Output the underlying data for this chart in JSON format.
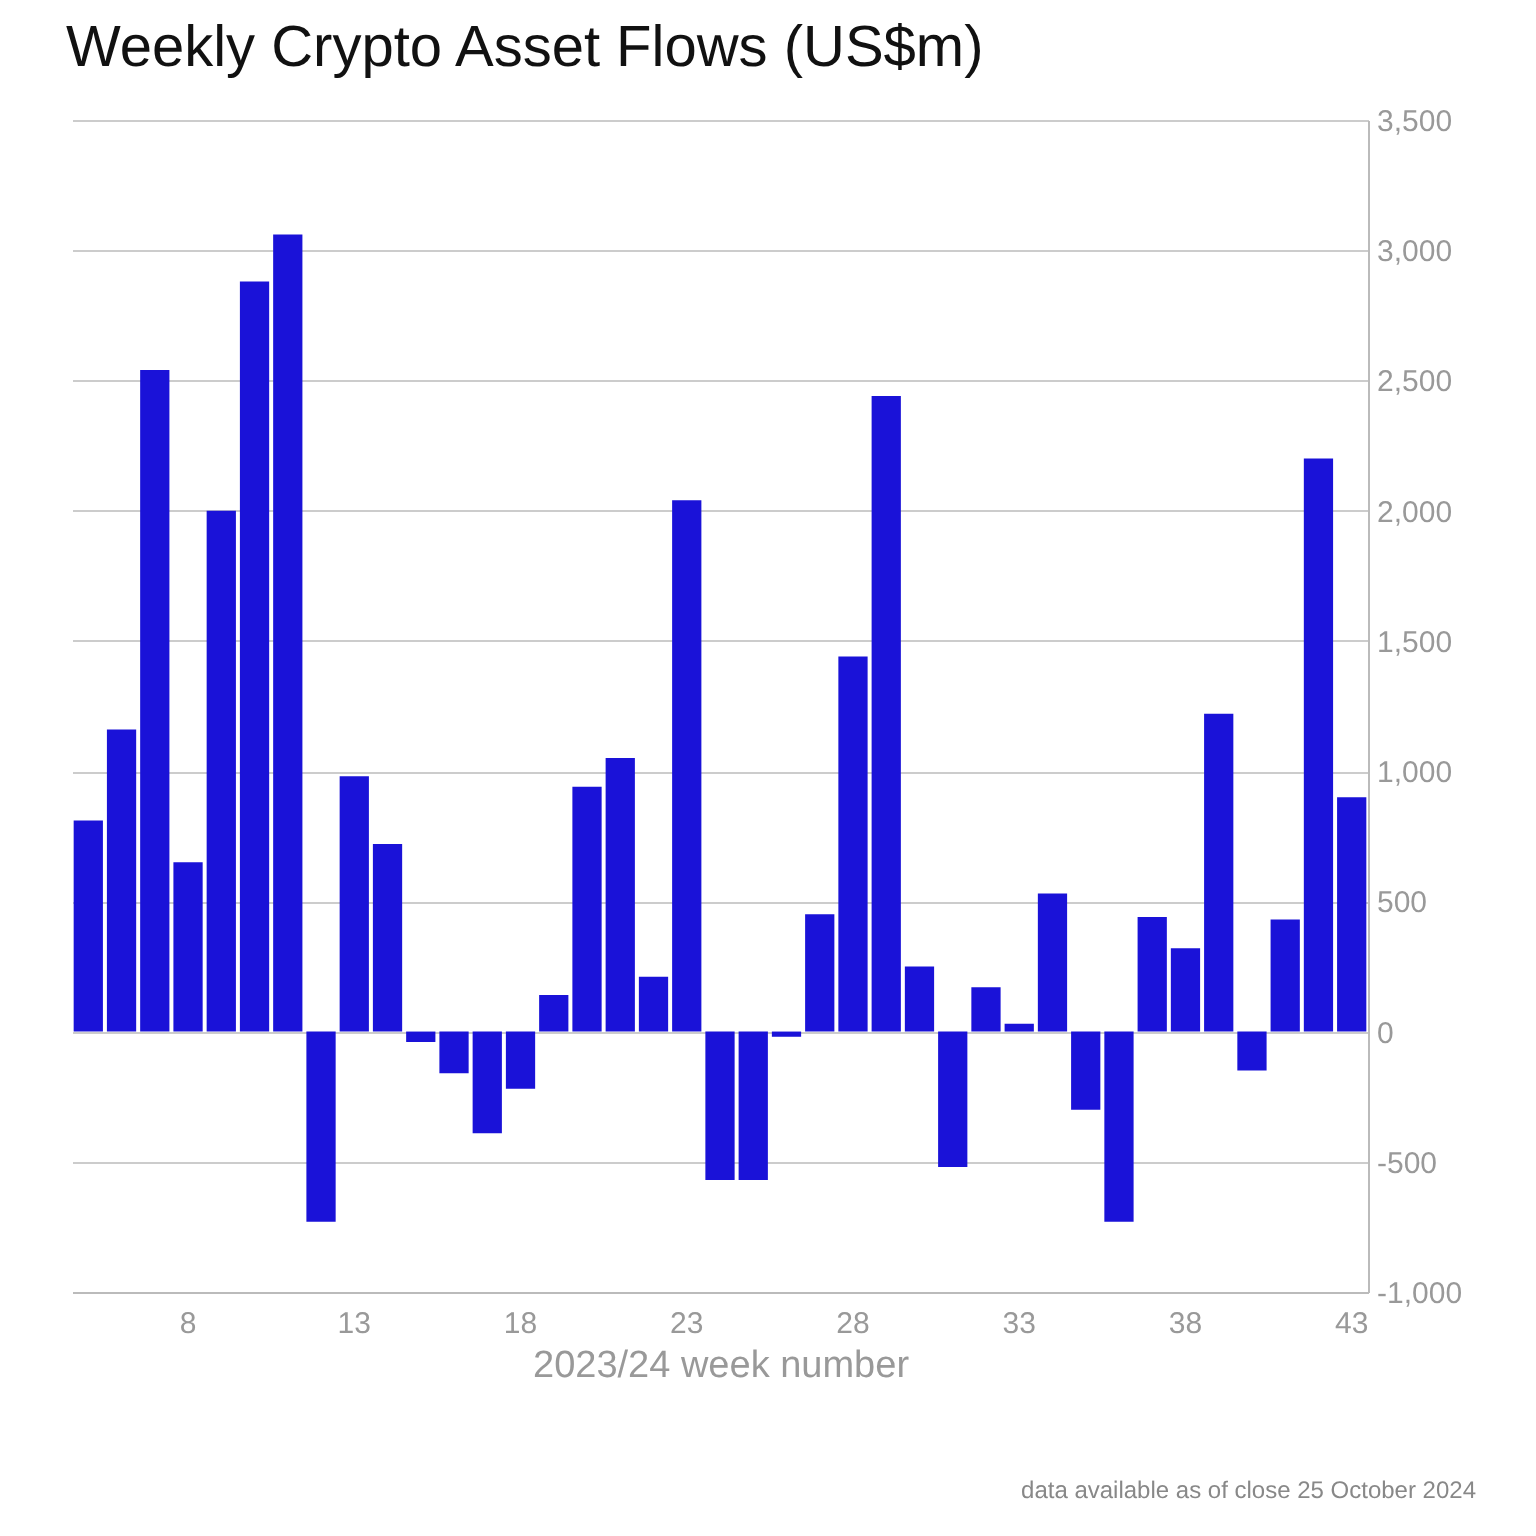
{
  "chart_data": {
    "type": "bar",
    "title": "Weekly Crypto Asset Flows (US$m)",
    "xlabel": "2023/24 week number",
    "annotations": [
      "data available as of close 25 October 2024"
    ],
    "categories": [
      null,
      null,
      null,
      "8",
      null,
      null,
      null,
      null,
      "13",
      null,
      null,
      null,
      null,
      "18",
      null,
      null,
      null,
      null,
      "23",
      null,
      null,
      null,
      null,
      "28",
      null,
      null,
      null,
      null,
      "33",
      null,
      null,
      null,
      null,
      "38",
      null,
      null,
      null,
      null,
      "43"
    ],
    "values": [
      810,
      1160,
      2540,
      650,
      2000,
      2880,
      3060,
      -730,
      980,
      720,
      -40,
      -160,
      -390,
      -220,
      140,
      940,
      1050,
      210,
      2040,
      -570,
      -570,
      -20,
      450,
      1440,
      2440,
      250,
      -520,
      170,
      30,
      530,
      -300,
      -730,
      440,
      320,
      1220,
      -150,
      430,
      2200,
      900
    ],
    "color": "#1a12d8",
    "ylim": [
      -1000,
      3500
    ],
    "yticks": [
      {
        "value": -1000,
        "label": "-1,000"
      },
      {
        "value": -500,
        "label": "-500"
      },
      0,
      500,
      {
        "value": 1000,
        "label": "1,000"
      },
      {
        "value": 1500,
        "label": "1,500"
      },
      {
        "value": 2000,
        "label": "2,000"
      },
      {
        "value": 2500,
        "label": "2,500"
      },
      {
        "value": 3000,
        "label": "3,000"
      },
      {
        "value": 3500,
        "label": "3,500"
      }
    ],
    "grid": "y"
  }
}
